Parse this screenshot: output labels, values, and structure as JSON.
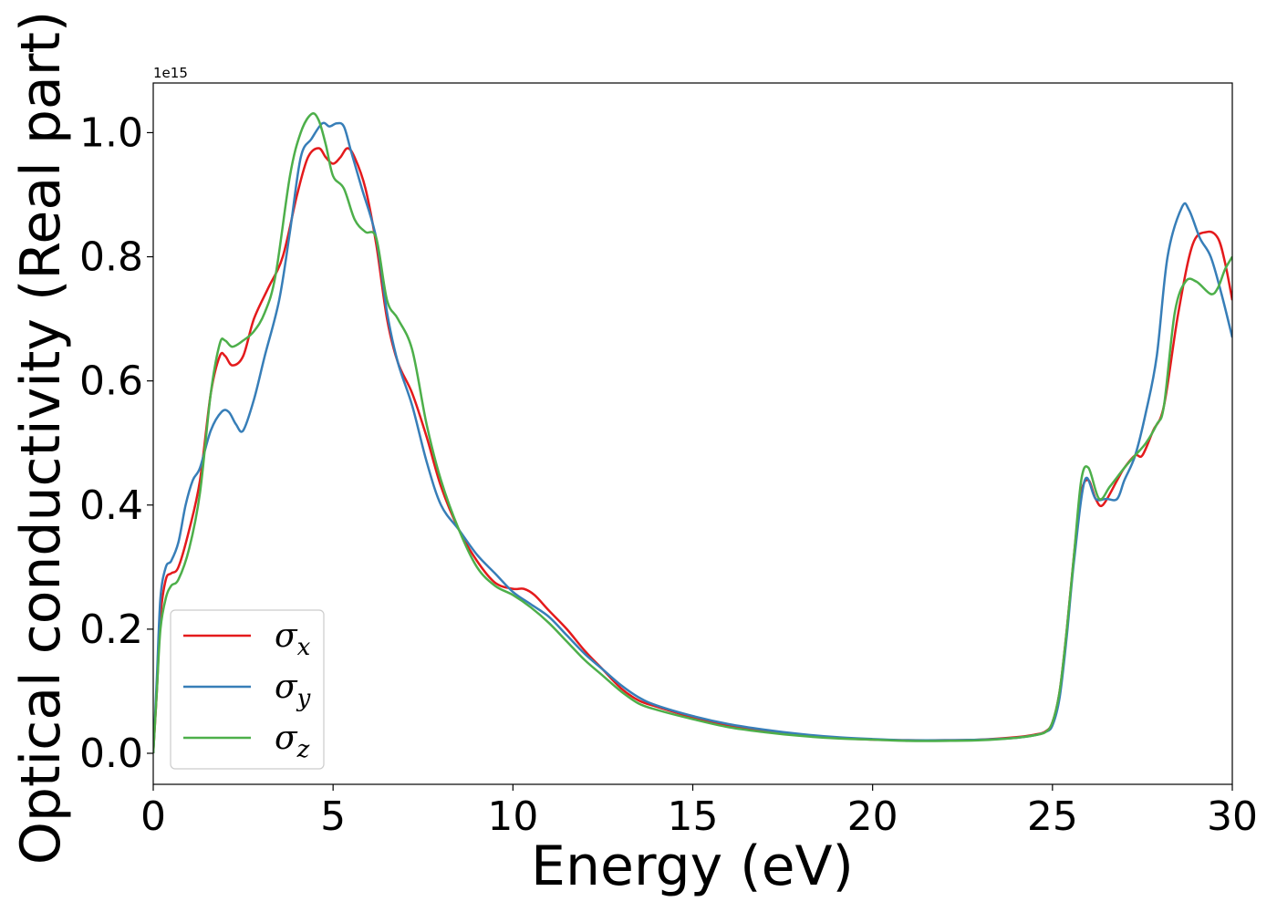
{
  "chart_data": {
    "type": "line",
    "xlabel": "Energy (eV)",
    "ylabel": "Optical conductivity (Real part)",
    "offset_text": "1e15",
    "xlim": [
      0,
      30
    ],
    "ylim": [
      -0.05,
      1.08
    ],
    "xticks": [
      0,
      5,
      10,
      15,
      20,
      25,
      30
    ],
    "xtick_labels": [
      "0",
      "5",
      "10",
      "15",
      "20",
      "25",
      "30"
    ],
    "yticks": [
      0.0,
      0.2,
      0.4,
      0.6,
      0.8,
      1.0
    ],
    "ytick_labels": [
      "0.0",
      "0.2",
      "0.4",
      "0.6",
      "0.8",
      "1.0"
    ],
    "grid": false,
    "legend_position": "lower-left",
    "series": [
      {
        "name": "σx",
        "legend_base": "σ",
        "legend_sub": "x",
        "color": "#e41a1c",
        "x": [
          0,
          0.1,
          0.2,
          0.35,
          0.5,
          0.7,
          1.0,
          1.3,
          1.6,
          1.85,
          2.0,
          2.2,
          2.5,
          2.8,
          3.2,
          3.6,
          4.0,
          4.3,
          4.6,
          4.8,
          5.0,
          5.2,
          5.4,
          5.6,
          5.9,
          6.2,
          6.5,
          6.8,
          7.2,
          7.6,
          8.0,
          8.5,
          9.0,
          9.5,
          10.0,
          10.3,
          10.6,
          11.0,
          11.5,
          12.0,
          12.5,
          13.0,
          13.5,
          14.0,
          15.0,
          16.0,
          17.0,
          18.0,
          19.0,
          20.0,
          21.0,
          22.0,
          23.0,
          24.0,
          24.5,
          24.8,
          25.0,
          25.2,
          25.4,
          25.6,
          25.8,
          26.0,
          26.2,
          26.4,
          26.8,
          27.0,
          27.3,
          27.5,
          27.8,
          28.1,
          28.5,
          28.9,
          29.3,
          29.6,
          29.8,
          30.0
        ],
        "y": [
          0.0,
          0.1,
          0.22,
          0.28,
          0.29,
          0.3,
          0.36,
          0.44,
          0.58,
          0.64,
          0.64,
          0.625,
          0.64,
          0.7,
          0.75,
          0.8,
          0.9,
          0.96,
          0.975,
          0.96,
          0.95,
          0.96,
          0.975,
          0.96,
          0.91,
          0.82,
          0.7,
          0.63,
          0.58,
          0.51,
          0.43,
          0.36,
          0.31,
          0.275,
          0.265,
          0.265,
          0.255,
          0.23,
          0.2,
          0.165,
          0.135,
          0.105,
          0.085,
          0.075,
          0.058,
          0.045,
          0.037,
          0.03,
          0.025,
          0.022,
          0.021,
          0.021,
          0.022,
          0.026,
          0.03,
          0.035,
          0.05,
          0.1,
          0.2,
          0.32,
          0.42,
          0.44,
          0.41,
          0.4,
          0.44,
          0.46,
          0.48,
          0.48,
          0.52,
          0.56,
          0.71,
          0.82,
          0.84,
          0.83,
          0.79,
          0.73
        ]
      },
      {
        "name": "σy",
        "legend_base": "σ",
        "legend_sub": "y",
        "color": "#377eb8",
        "x": [
          0,
          0.1,
          0.2,
          0.35,
          0.5,
          0.7,
          0.9,
          1.1,
          1.3,
          1.6,
          1.9,
          2.1,
          2.3,
          2.5,
          2.8,
          3.1,
          3.5,
          3.8,
          4.1,
          4.4,
          4.7,
          4.9,
          5.1,
          5.3,
          5.5,
          5.8,
          6.2,
          6.5,
          6.8,
          7.2,
          7.6,
          8.0,
          8.5,
          9.0,
          9.5,
          10.0,
          10.5,
          11.0,
          11.5,
          12.0,
          12.5,
          13.0,
          13.5,
          14.0,
          15.0,
          16.0,
          17.0,
          18.0,
          19.0,
          20.0,
          21.0,
          22.0,
          23.0,
          24.0,
          24.5,
          24.8,
          25.0,
          25.2,
          25.4,
          25.6,
          25.9,
          26.2,
          26.5,
          26.8,
          27.0,
          27.3,
          27.6,
          27.9,
          28.2,
          28.6,
          28.8,
          29.1,
          29.4,
          29.7,
          30.0
        ],
        "y": [
          0.0,
          0.12,
          0.25,
          0.3,
          0.31,
          0.34,
          0.4,
          0.44,
          0.46,
          0.52,
          0.55,
          0.55,
          0.53,
          0.52,
          0.57,
          0.64,
          0.73,
          0.84,
          0.96,
          0.99,
          1.015,
          1.01,
          1.015,
          1.01,
          0.97,
          0.91,
          0.83,
          0.71,
          0.63,
          0.56,
          0.47,
          0.4,
          0.36,
          0.32,
          0.29,
          0.26,
          0.24,
          0.22,
          0.19,
          0.16,
          0.135,
          0.11,
          0.09,
          0.077,
          0.06,
          0.047,
          0.038,
          0.031,
          0.026,
          0.023,
          0.021,
          0.021,
          0.022,
          0.025,
          0.029,
          0.034,
          0.045,
          0.09,
          0.19,
          0.31,
          0.44,
          0.41,
          0.41,
          0.41,
          0.44,
          0.48,
          0.55,
          0.64,
          0.8,
          0.88,
          0.875,
          0.83,
          0.8,
          0.74,
          0.67
        ]
      },
      {
        "name": "σz",
        "legend_base": "σ",
        "legend_sub": "z",
        "color": "#4daf4a",
        "x": [
          0,
          0.1,
          0.2,
          0.35,
          0.5,
          0.7,
          1.0,
          1.3,
          1.6,
          1.85,
          2.0,
          2.2,
          2.5,
          2.8,
          3.1,
          3.4,
          3.8,
          4.1,
          4.4,
          4.6,
          4.8,
          5.0,
          5.3,
          5.6,
          5.9,
          6.2,
          6.5,
          6.8,
          7.2,
          7.6,
          8.0,
          8.5,
          9.0,
          9.5,
          10.0,
          10.5,
          11.0,
          11.5,
          12.0,
          12.5,
          13.0,
          13.5,
          14.0,
          15.0,
          16.0,
          17.0,
          18.0,
          19.0,
          20.0,
          21.0,
          22.0,
          23.0,
          24.0,
          24.5,
          24.8,
          25.0,
          25.2,
          25.4,
          25.6,
          25.8,
          26.0,
          26.3,
          26.6,
          27.0,
          27.3,
          27.6,
          27.9,
          28.1,
          28.4,
          28.7,
          29.0,
          29.4,
          29.6,
          29.8,
          30.0
        ],
        "y": [
          0.0,
          0.1,
          0.2,
          0.25,
          0.27,
          0.28,
          0.33,
          0.42,
          0.58,
          0.66,
          0.665,
          0.655,
          0.665,
          0.68,
          0.71,
          0.77,
          0.93,
          1.0,
          1.03,
          1.02,
          0.98,
          0.93,
          0.91,
          0.86,
          0.84,
          0.83,
          0.73,
          0.7,
          0.65,
          0.53,
          0.44,
          0.36,
          0.3,
          0.27,
          0.255,
          0.235,
          0.21,
          0.18,
          0.15,
          0.125,
          0.1,
          0.08,
          0.07,
          0.055,
          0.042,
          0.034,
          0.028,
          0.024,
          0.022,
          0.02,
          0.02,
          0.021,
          0.025,
          0.029,
          0.034,
          0.05,
          0.1,
          0.2,
          0.32,
          0.44,
          0.46,
          0.41,
          0.43,
          0.46,
          0.48,
          0.5,
          0.53,
          0.56,
          0.71,
          0.76,
          0.76,
          0.74,
          0.75,
          0.78,
          0.8
        ]
      }
    ]
  }
}
